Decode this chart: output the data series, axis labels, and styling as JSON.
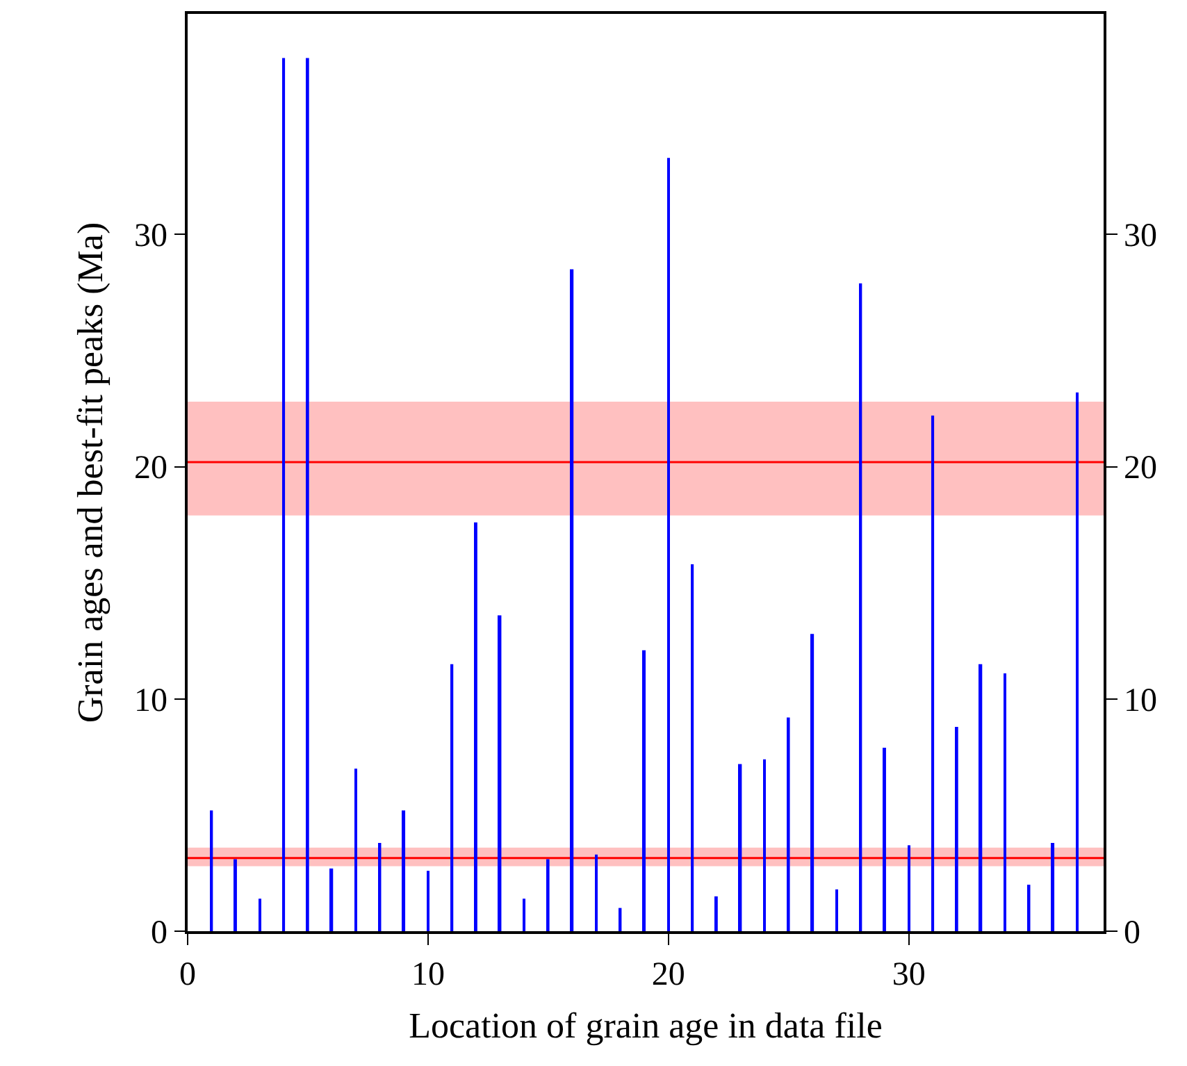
{
  "chart_data": {
    "type": "bar",
    "xlabel": "Location of grain age in data file",
    "ylabel": "Grain ages and best-fit peaks (Ma)",
    "x": [
      1,
      2,
      3,
      4,
      5,
      6,
      7,
      8,
      9,
      10,
      11,
      12,
      13,
      14,
      15,
      16,
      17,
      18,
      19,
      20,
      21,
      22,
      23,
      24,
      25,
      26,
      27,
      28,
      29,
      30,
      31,
      32,
      33,
      34,
      35,
      36,
      37
    ],
    "series": [
      {
        "color": "#0000ff",
        "values": [
          5.2,
          3.1,
          1.4,
          37.6,
          37.6,
          2.7,
          7.0,
          3.8,
          5.2,
          2.6,
          11.5,
          17.6,
          13.6,
          1.4,
          3.1,
          28.5,
          3.3,
          1.0,
          12.1,
          33.3,
          15.8,
          1.5,
          7.2,
          7.4,
          9.2,
          12.8,
          1.8,
          27.9,
          7.9,
          3.7,
          22.2,
          8.8,
          11.5,
          11.1,
          2.0,
          3.8,
          23.2
        ]
      }
    ],
    "xlim": [
      0,
      38.1
    ],
    "xticks": [
      0,
      10,
      20,
      30
    ],
    "ylim": [
      0,
      39.5
    ],
    "yticks": [
      0,
      10,
      20,
      30
    ],
    "y2lim": [
      0,
      39.5
    ],
    "y2ticks": [
      0,
      10,
      20,
      30
    ],
    "ref_lines": [
      {
        "axis": "y",
        "value": 20.2,
        "color": "#ff0000"
      },
      {
        "axis": "y",
        "value": 3.15,
        "color": "#ff0000"
      }
    ],
    "bands": [
      {
        "axis": "y",
        "from": 17.9,
        "to": 22.8,
        "color": "#ffc0c0"
      },
      {
        "axis": "y",
        "from": 2.8,
        "to": 3.6,
        "color": "#ffc0c0"
      }
    ]
  }
}
